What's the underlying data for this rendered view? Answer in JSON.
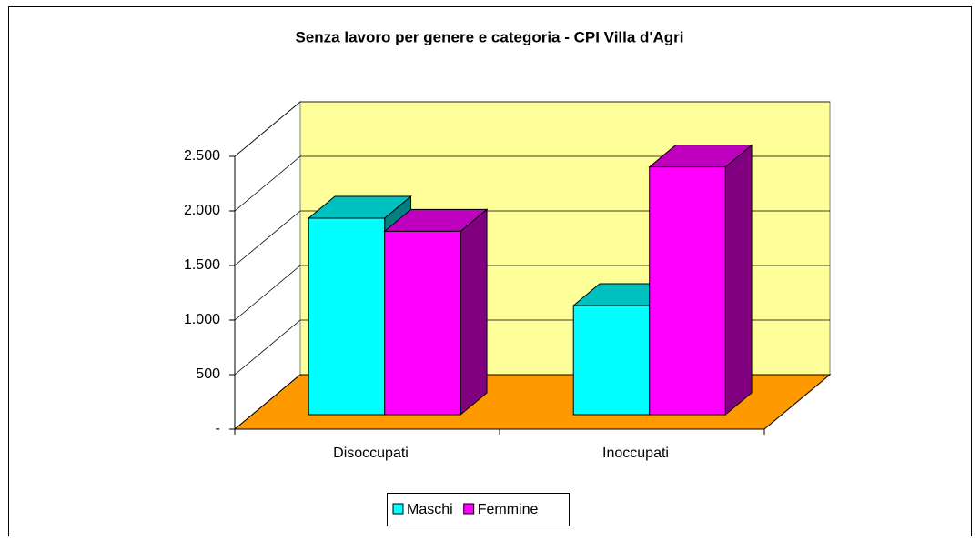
{
  "chart_data": {
    "type": "bar3d",
    "title": "Senza lavoro per genere e categoria - CPI Villa d'Agri",
    "categories": [
      "Disoccupati",
      "Inoccupati"
    ],
    "series": [
      {
        "name": "Maschi",
        "color": "#00ffff",
        "values": [
          1800,
          1000
        ]
      },
      {
        "name": "Femmine",
        "color": "#ff00ff",
        "values": [
          1680,
          2270
        ]
      }
    ],
    "ylim": [
      0,
      2500
    ],
    "yticks": [
      {
        "value": 0,
        "label": "-"
      },
      500,
      {
        "value": 1000,
        "label": "1.000"
      },
      {
        "value": 1500,
        "label": "1.500"
      },
      {
        "value": 2000,
        "label": "2.000"
      },
      {
        "value": 2500,
        "label": "2.500"
      }
    ],
    "grid": true,
    "legend": "bottom"
  }
}
